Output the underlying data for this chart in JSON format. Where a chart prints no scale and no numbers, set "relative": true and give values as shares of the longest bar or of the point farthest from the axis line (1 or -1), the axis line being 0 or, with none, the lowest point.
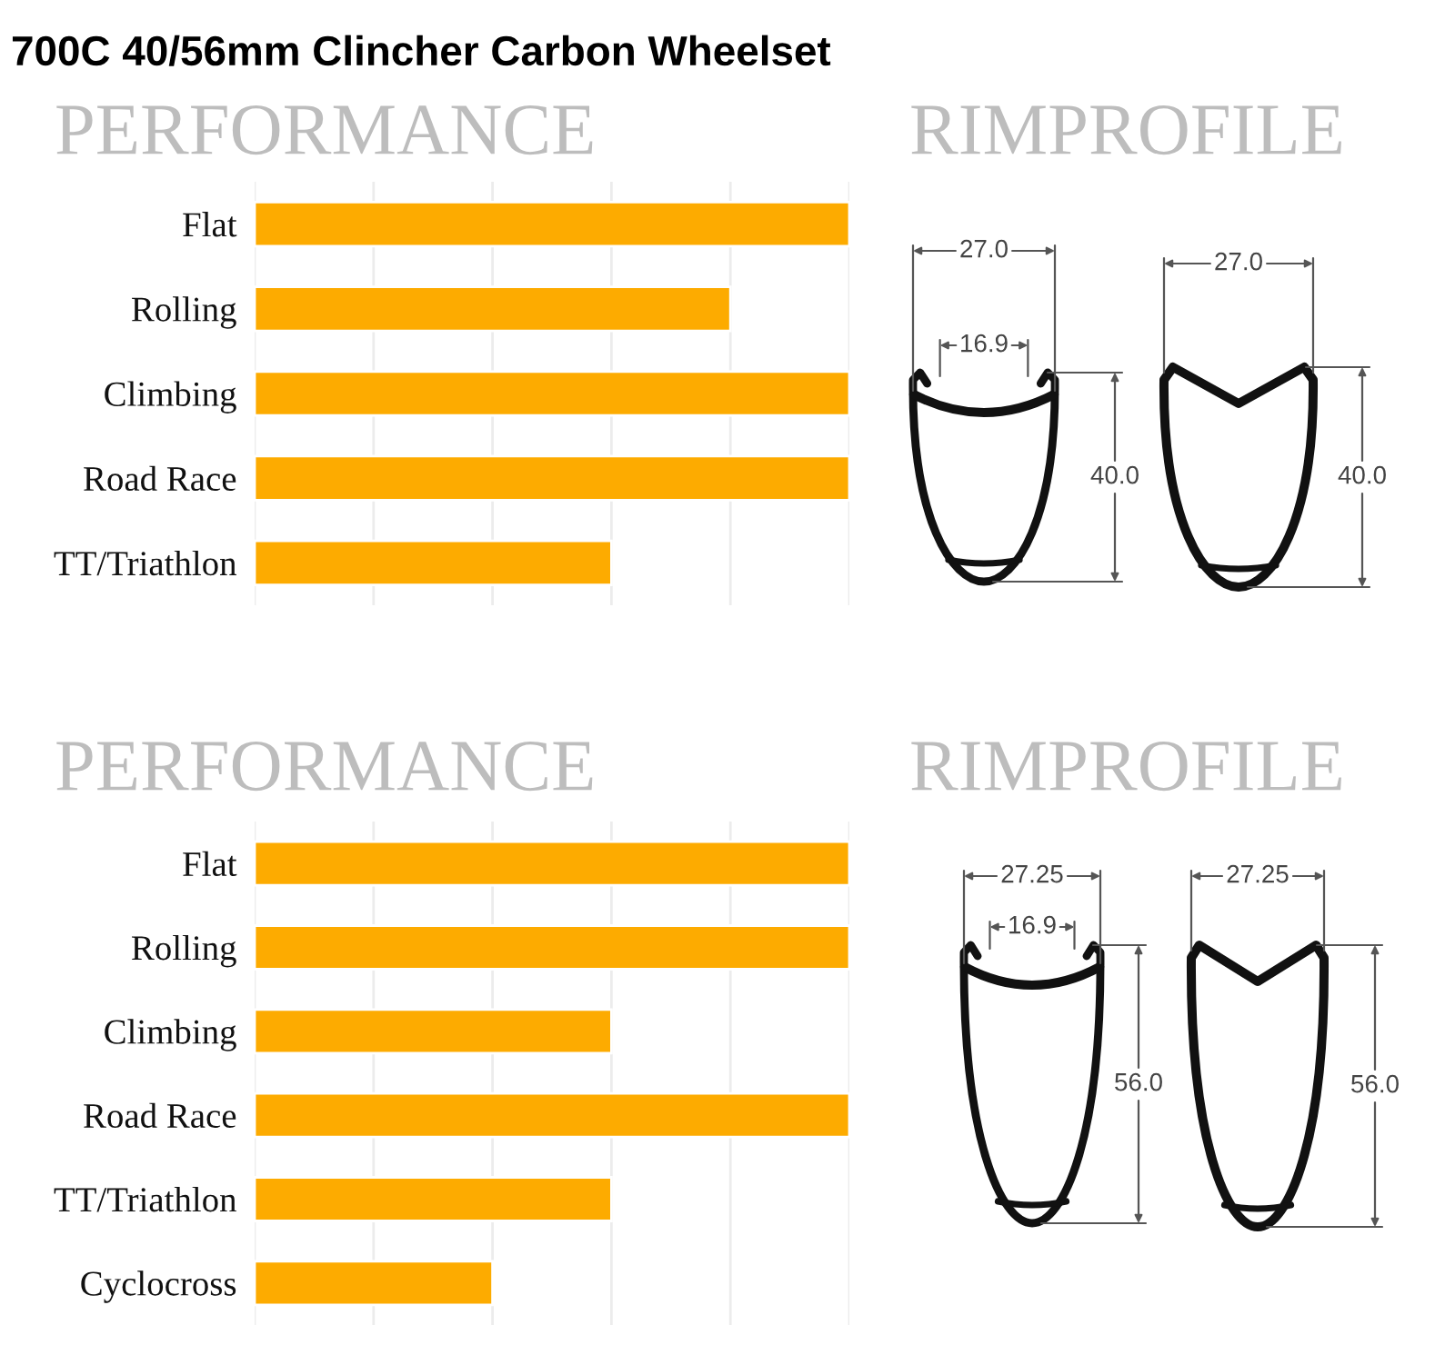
{
  "chart_data": [
    {
      "type": "bar",
      "title": "700C 40/56mm Clincher Carbon Wheelset",
      "subtitle": "PERFORMANCE",
      "orientation": "horizontal",
      "relative": true,
      "categories": [
        "Flat",
        "Rolling",
        "Climbing",
        "Road Race",
        "TT/Triathlon"
      ],
      "values": [
        1,
        0.8,
        1,
        1,
        0.6
      ],
      "color": "#fdab00",
      "grid": "x"
    },
    {
      "type": "other",
      "title": "RIMPROFILE",
      "annotations": [
        "27.0",
        "16.9",
        "40.0",
        "27.0",
        "40.0"
      ]
    },
    {
      "type": "bar",
      "title": "PERFORMANCE",
      "orientation": "horizontal",
      "relative": true,
      "categories": [
        "Flat",
        "Rolling",
        "Climbing",
        "Road Race",
        "TT/Triathlon",
        "Cyclocross"
      ],
      "values": [
        1,
        1,
        0.6,
        1,
        0.6,
        0.4
      ],
      "color": "#fdab00",
      "grid": "x"
    },
    {
      "type": "other",
      "title": "RIMPROFILE",
      "annotations": [
        "27.25",
        "16.9",
        "56.0",
        "27.25",
        "56.0"
      ]
    }
  ]
}
